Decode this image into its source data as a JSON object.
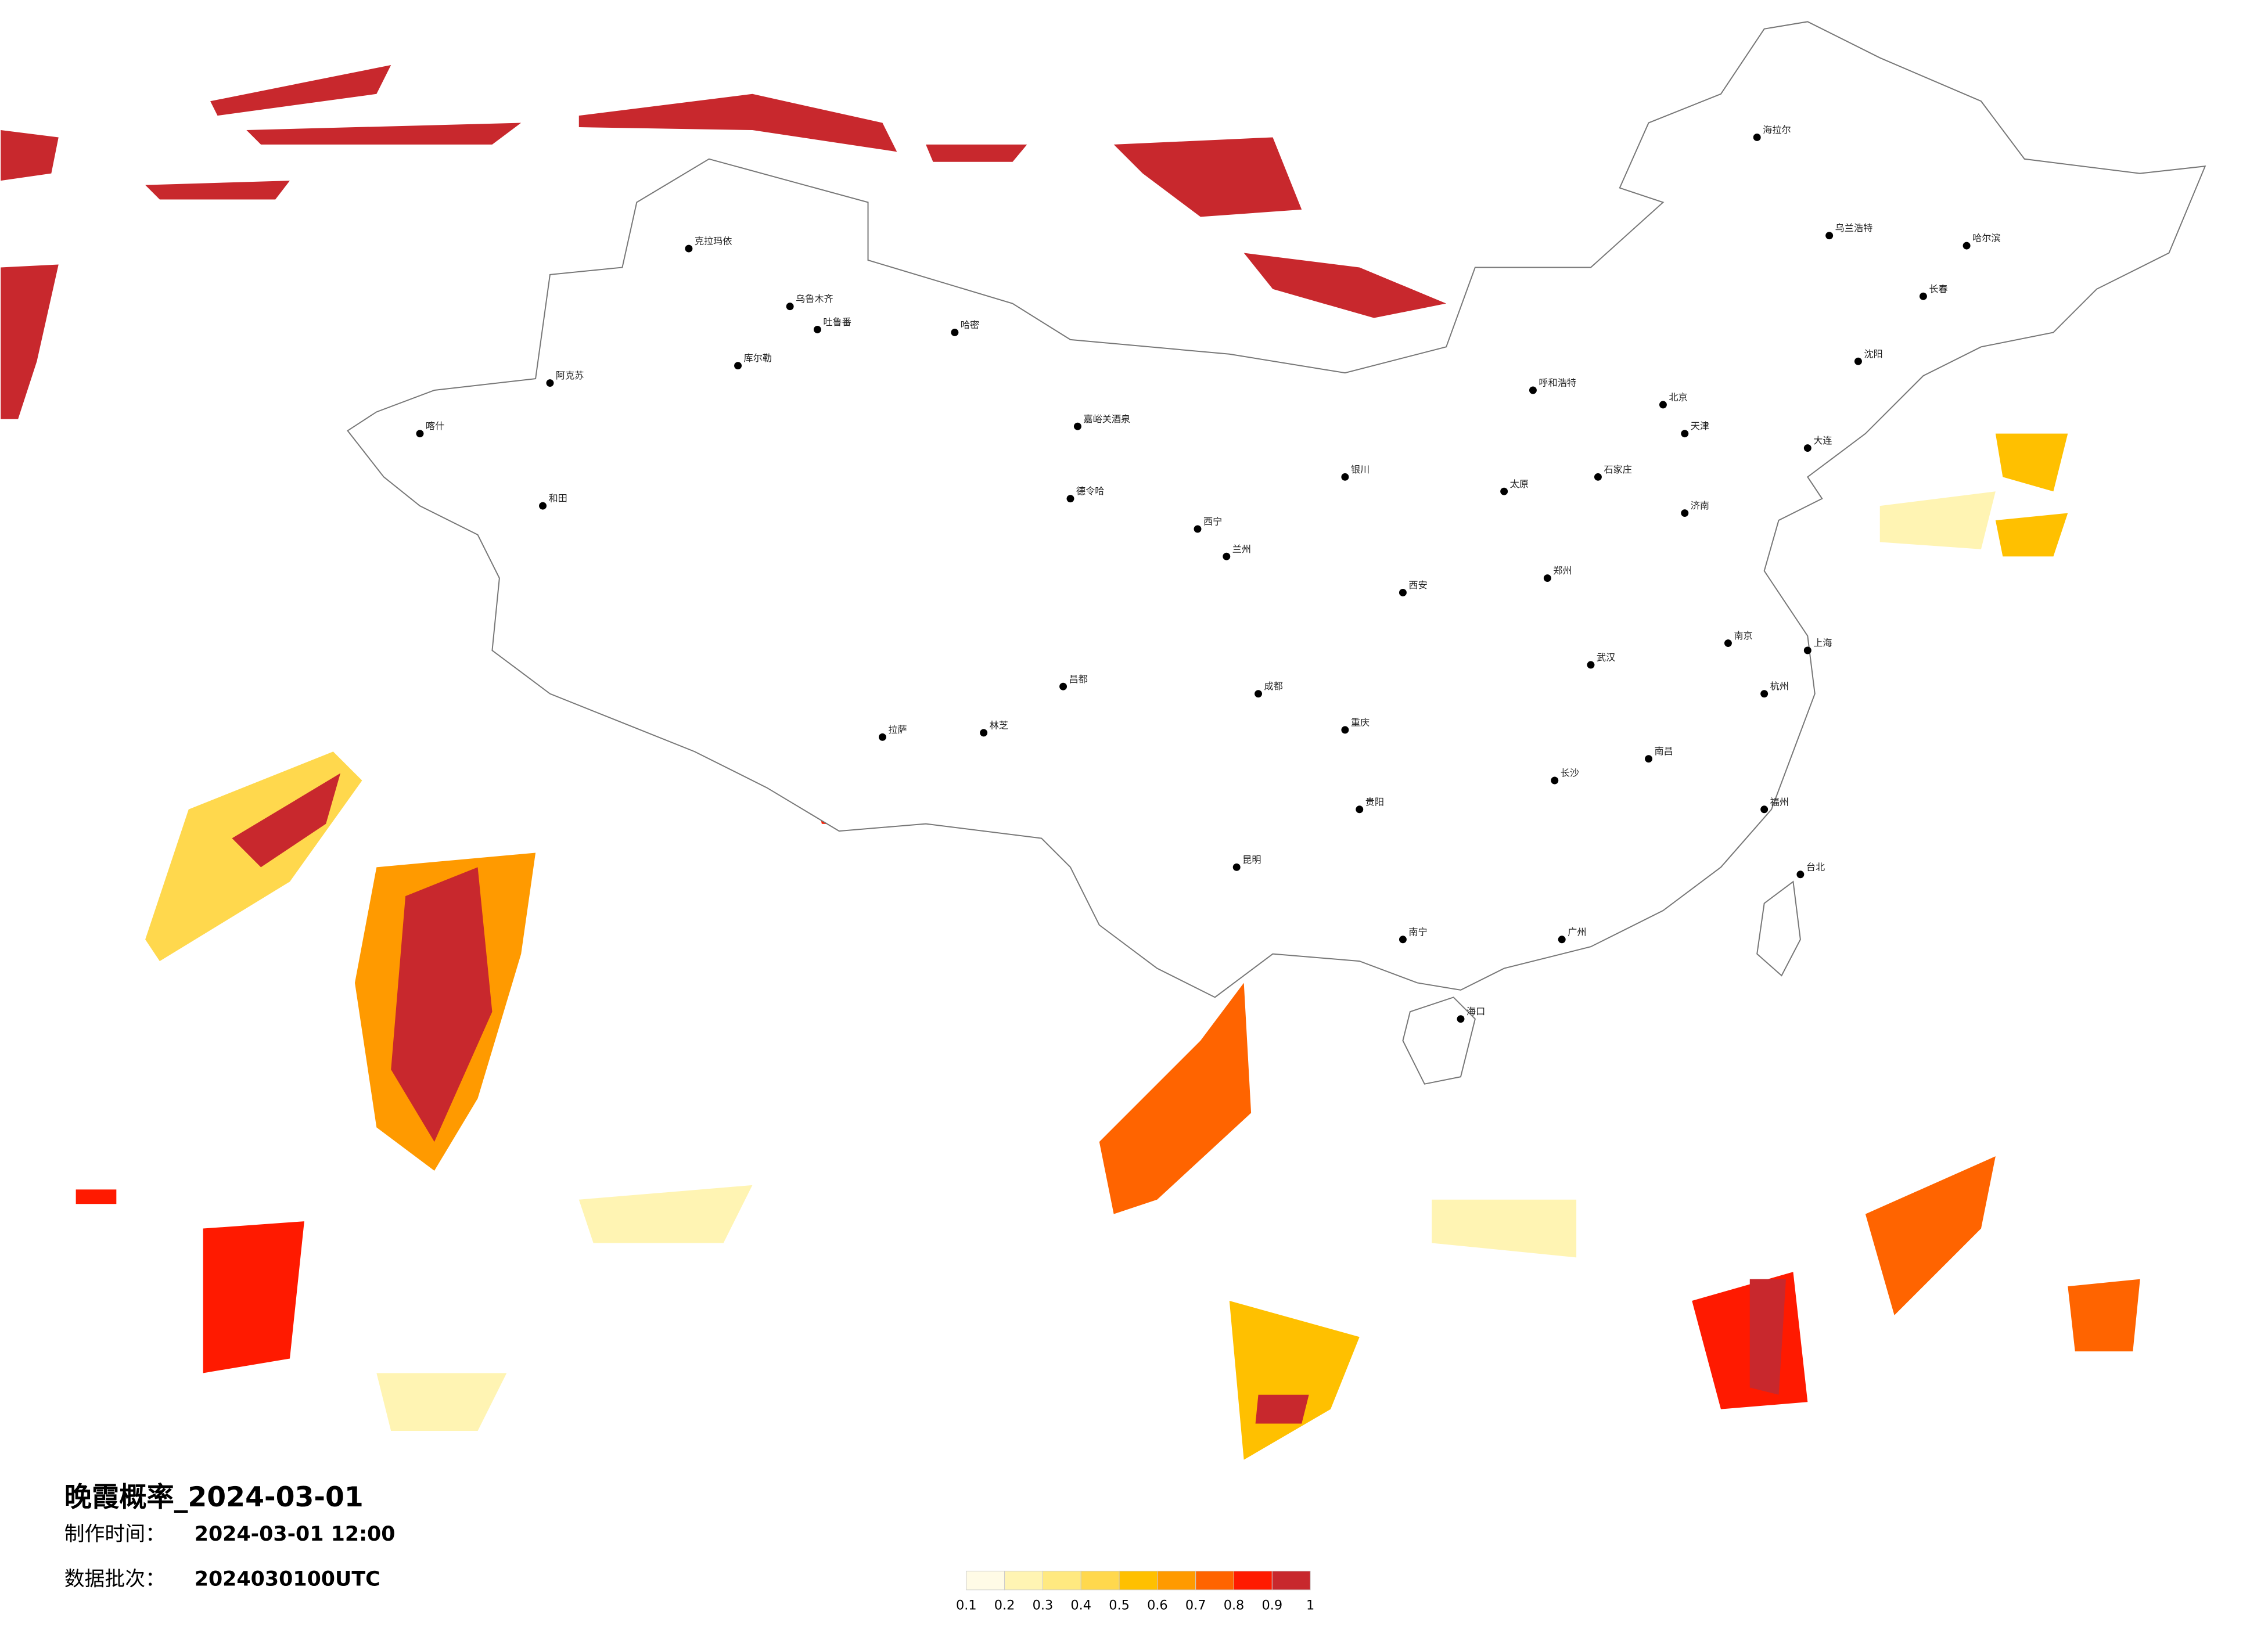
{
  "title": "晚霞概率_2024-03-01",
  "made_time": {
    "label": "制作时间：",
    "value": "2024-03-01 12:00"
  },
  "batch": {
    "label": "数据批次：",
    "value": "2024030100UTC"
  },
  "legend": {
    "ticks": [
      0.1,
      0.2,
      0.3,
      0.4,
      0.5,
      0.6,
      0.7,
      0.8,
      0.9,
      1
    ],
    "colors": [
      "#fffbe6",
      "#fff4b3",
      "#ffe980",
      "#ffd84d",
      "#ffc000",
      "#ff9a00",
      "#ff6400",
      "#ff1a00",
      "#c8282d"
    ]
  },
  "cities": [
    "克拉玛依",
    "乌鲁木齐",
    "吐鲁番",
    "哈密",
    "库尔勒",
    "阿克苏",
    "喀什",
    "和田",
    "嘉峪关酒泉",
    "德令哈",
    "拉萨",
    "林芝",
    "昌都",
    "西宁",
    "兰州",
    "银川",
    "呼和浩特",
    "北京",
    "天津",
    "石家庄",
    "太原",
    "济南",
    "郑州",
    "西安",
    "成都",
    "重庆",
    "武汉",
    "长沙",
    "南昌",
    "杭州",
    "上海",
    "南京",
    "福州",
    "广州",
    "南宁",
    "昆明",
    "贵阳",
    "海口",
    "台北",
    "哈尔滨",
    "长春",
    "沈阳",
    "大连",
    "乌兰浩特",
    "海拉尔"
  ]
}
